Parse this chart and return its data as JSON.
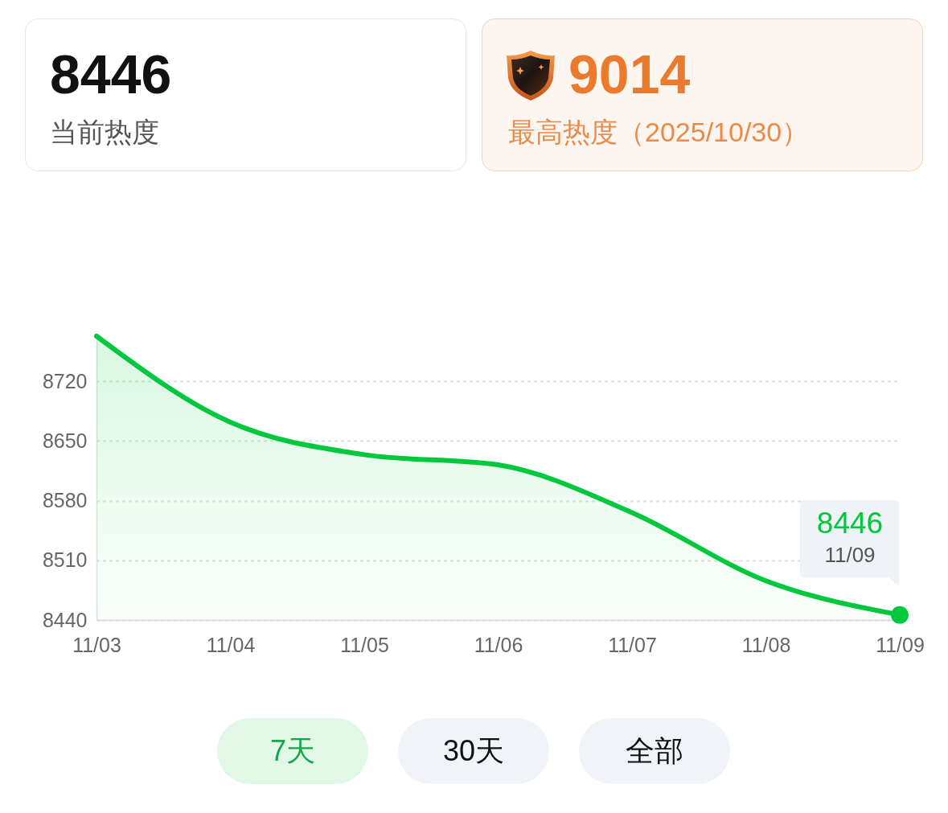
{
  "chart_data": [
    {
      "type": "other",
      "title": "8446",
      "subtitle": "当前热度"
    },
    {
      "type": "other",
      "title": "9014",
      "subtitle": "最高热度（2025/10/30）"
    },
    {
      "type": "area",
      "categories": [
        "11/03",
        "11/04",
        "11/05",
        "11/06",
        "11/07",
        "11/08",
        "11/09"
      ],
      "values": [
        8773,
        8672,
        8634,
        8622,
        8566,
        8486,
        8446
      ],
      "color": "#00c83c",
      "ylim": [
        8440,
        8773
      ],
      "yticks": [
        8440,
        8510,
        8580,
        8650,
        8720
      ],
      "grid": "y",
      "annotations": [
        {
          "text": "8446",
          "x": "11/09",
          "y": 8446
        },
        {
          "text": "11/09",
          "x": "11/09",
          "y": 8446
        },
        "7天",
        "30天",
        "全部"
      ]
    }
  ]
}
